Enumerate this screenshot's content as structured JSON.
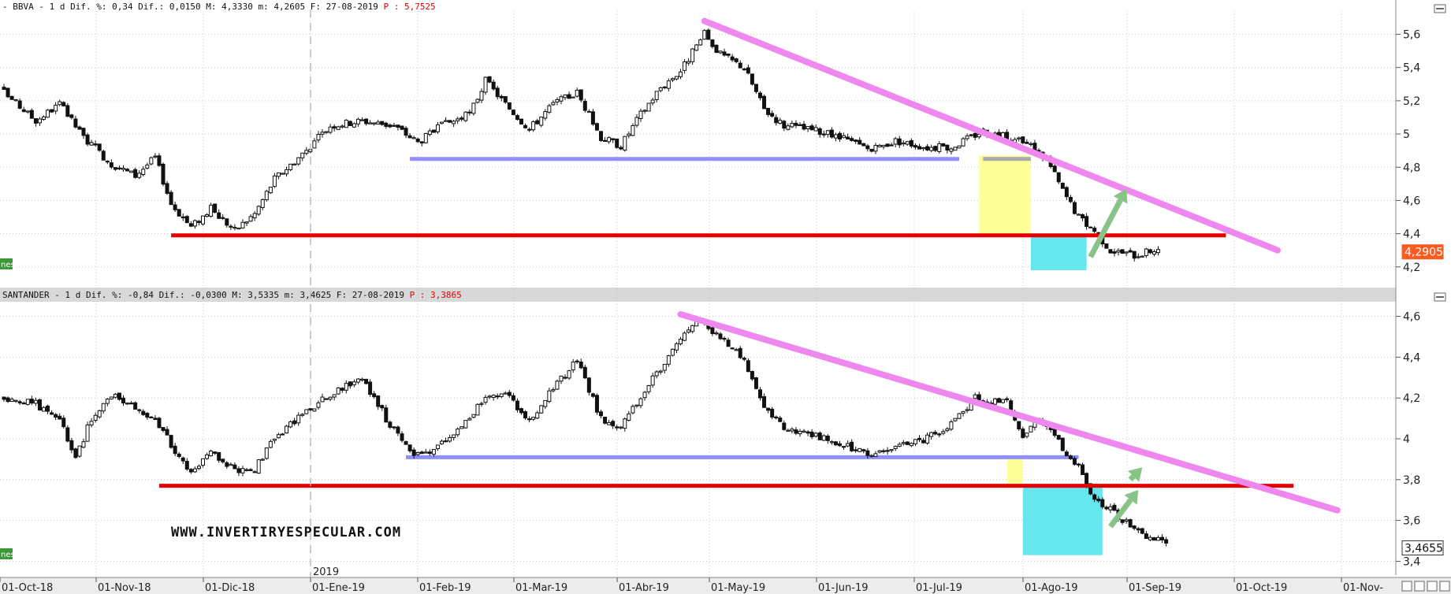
{
  "colors": {
    "up": "#ffffff",
    "down": "#111111",
    "wick": "#111111",
    "trendline": "#ee88ee",
    "support": "#e60000",
    "neckline": "#8f8fff",
    "yellow_box": "#ffff99",
    "cyan_box": "#66e6ee",
    "arrow": "#88c488",
    "last_badge": "#ff5a1f",
    "grid": "#c8c8c8",
    "separator": "#d0d0d0"
  },
  "x_labels": [
    "01-Oct-18",
    "01-Nov-18",
    "01-Dic-18",
    "01-Ene-19",
    "01-Feb-19",
    "01-Mar-19",
    "01-Abr-19",
    "01-May-19",
    "01-Jun-19",
    "01-Jul-19",
    "01-Ago-19",
    "01-Sep-19",
    "01-Oct-19",
    "01-Nov-"
  ],
  "year_marker": "2019",
  "watermark": "WWW.INVERTIRYESPECULAR.COM",
  "chart_data": [
    {
      "type": "candlestick",
      "header": {
        "prefix": "- BBVA -  1 d Dif. %: 0,34 Dif.: 0,0150 M: 4,3330 m: 4,2605 F: 27-08-2019 ",
        "price": "P : 5,7525"
      },
      "left_tag": "nes",
      "last_value": "4,2905",
      "y_ticks": [
        "5,6",
        "5,4",
        "5,2",
        "5",
        "4,8",
        "4,6",
        "4,4",
        "4,2"
      ],
      "ylim": [
        4.09,
        5.74
      ],
      "anchors": [
        [
          0,
          5.25
        ],
        [
          8,
          5.08
        ],
        [
          14,
          5.18
        ],
        [
          20,
          4.98
        ],
        [
          27,
          4.82
        ],
        [
          33,
          4.75
        ],
        [
          38,
          4.86
        ],
        [
          42,
          4.58
        ],
        [
          47,
          4.44
        ],
        [
          52,
          4.55
        ],
        [
          58,
          4.42
        ],
        [
          63,
          4.52
        ],
        [
          68,
          4.73
        ],
        [
          75,
          4.88
        ],
        [
          82,
          5.05
        ],
        [
          90,
          5.08
        ],
        [
          98,
          5.05
        ],
        [
          104,
          4.95
        ],
        [
          110,
          5.05
        ],
        [
          117,
          5.12
        ],
        [
          121,
          5.32
        ],
        [
          126,
          5.18
        ],
        [
          132,
          5.03
        ],
        [
          138,
          5.18
        ],
        [
          144,
          5.25
        ],
        [
          150,
          4.98
        ],
        [
          155,
          4.93
        ],
        [
          160,
          5.12
        ],
        [
          165,
          5.28
        ],
        [
          170,
          5.38
        ],
        [
          176,
          5.6
        ],
        [
          180,
          5.48
        ],
        [
          186,
          5.4
        ],
        [
          191,
          5.15
        ],
        [
          196,
          5.05
        ],
        [
          204,
          5.02
        ],
        [
          212,
          4.96
        ],
        [
          218,
          4.9
        ],
        [
          224,
          4.96
        ],
        [
          232,
          4.92
        ],
        [
          238,
          4.92
        ],
        [
          246,
          5.02
        ],
        [
          252,
          4.98
        ],
        [
          258,
          4.93
        ],
        [
          262,
          4.85
        ],
        [
          266,
          4.66
        ],
        [
          270,
          4.5
        ],
        [
          274,
          4.42
        ],
        [
          278,
          4.3
        ],
        [
          284,
          4.27
        ],
        [
          290,
          4.31
        ]
      ],
      "series": [
        {
          "name": "BBVA",
          "type": "ohlc"
        }
      ],
      "trend_line": [
        [
          176,
          5.68
        ],
        [
          320,
          4.3
        ]
      ],
      "neckline": {
        "x": [
          102,
          240
        ],
        "y": 4.85
      },
      "support": {
        "x": [
          42,
          307
        ],
        "y": 4.39
      },
      "yellow_box": {
        "x": [
          245,
          258
        ],
        "y": [
          4.39,
          4.87
        ]
      },
      "cyan_box": {
        "x": [
          258,
          272
        ],
        "y": [
          4.18,
          4.39
        ]
      },
      "gray_line": {
        "x": [
          246,
          258
        ],
        "y": 4.85
      },
      "arrow": [
        [
          273,
          4.26
        ],
        [
          282,
          4.67
        ]
      ]
    },
    {
      "type": "candlestick",
      "header": {
        "prefix": "SANTANDER -  1 d Dif. %: -0,84 Dif.: -0,0300 M: 3,5335 m: 3,4625 F: 27-08-2019 ",
        "price": "P : 3,3865"
      },
      "left_tag": "nes",
      "last_value": "3,4655",
      "y_ticks": [
        "4,6",
        "4,4",
        "4,2",
        "4",
        "3,8",
        "3,6",
        "3,4"
      ],
      "ylim": [
        3.34,
        4.66
      ],
      "anchors": [
        [
          0,
          4.2
        ],
        [
          8,
          4.17
        ],
        [
          14,
          4.1
        ],
        [
          18,
          3.9
        ],
        [
          22,
          4.1
        ],
        [
          27,
          4.22
        ],
        [
          33,
          4.15
        ],
        [
          38,
          4.1
        ],
        [
          42,
          3.97
        ],
        [
          47,
          3.82
        ],
        [
          52,
          3.94
        ],
        [
          58,
          3.84
        ],
        [
          63,
          3.85
        ],
        [
          68,
          4.0
        ],
        [
          75,
          4.12
        ],
        [
          82,
          4.22
        ],
        [
          90,
          4.3
        ],
        [
          96,
          4.1
        ],
        [
          100,
          3.98
        ],
        [
          104,
          3.92
        ],
        [
          110,
          3.97
        ],
        [
          116,
          4.08
        ],
        [
          121,
          4.2
        ],
        [
          126,
          4.24
        ],
        [
          132,
          4.08
        ],
        [
          138,
          4.25
        ],
        [
          144,
          4.38
        ],
        [
          150,
          4.1
        ],
        [
          155,
          4.06
        ],
        [
          160,
          4.2
        ],
        [
          165,
          4.35
        ],
        [
          170,
          4.5
        ],
        [
          175,
          4.58
        ],
        [
          180,
          4.5
        ],
        [
          186,
          4.38
        ],
        [
          191,
          4.15
        ],
        [
          196,
          4.05
        ],
        [
          204,
          4.02
        ],
        [
          212,
          3.96
        ],
        [
          218,
          3.92
        ],
        [
          224,
          3.96
        ],
        [
          232,
          4.0
        ],
        [
          238,
          4.08
        ],
        [
          244,
          4.2
        ],
        [
          252,
          4.18
        ],
        [
          256,
          4.02
        ],
        [
          260,
          4.1
        ],
        [
          266,
          3.96
        ],
        [
          270,
          3.86
        ],
        [
          274,
          3.71
        ],
        [
          280,
          3.62
        ],
        [
          286,
          3.52
        ],
        [
          292,
          3.5
        ]
      ],
      "series": [
        {
          "name": "SANTANDER",
          "type": "ohlc"
        }
      ],
      "trend_line": [
        [
          170,
          4.61
        ],
        [
          335,
          3.65
        ]
      ],
      "neckline": {
        "x": [
          101,
          270
        ],
        "y": 3.91
      },
      "support": {
        "x": [
          39,
          324
        ],
        "y": 3.77
      },
      "yellow_box": {
        "x": [
          252,
          256
        ],
        "y": [
          3.77,
          3.91
        ]
      },
      "cyan_box": {
        "x": [
          256,
          276
        ],
        "y": [
          3.43,
          3.77
        ]
      },
      "arrow": [
        [
          278,
          3.57
        ],
        [
          285,
          3.75
        ],
        [
          283,
          3.8
        ],
        [
          286,
          3.86
        ]
      ]
    }
  ]
}
